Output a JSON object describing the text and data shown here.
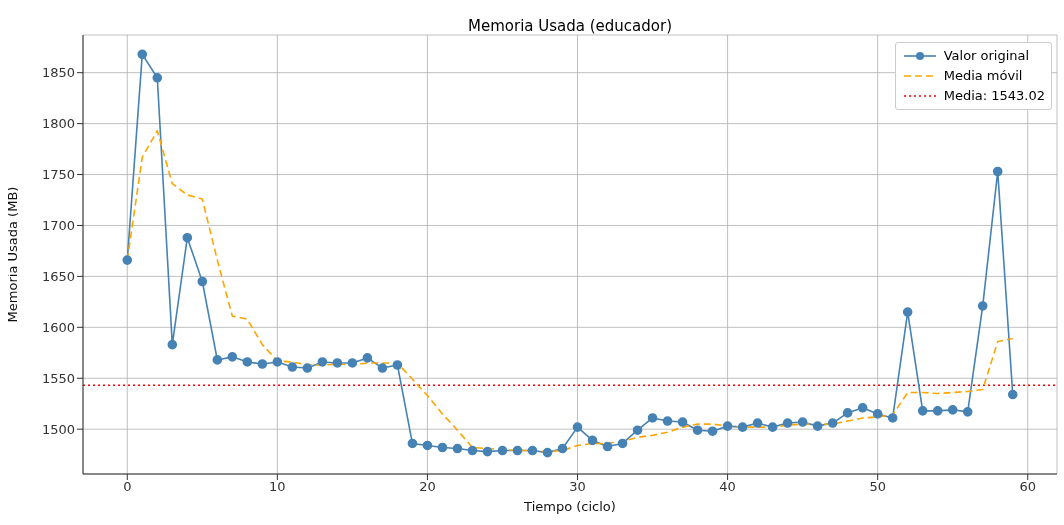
{
  "chart_data": {
    "type": "line",
    "title": "Memoria Usada (educador)",
    "xlabel": "Tiempo (ciclo)",
    "ylabel": "Memoria Usada (MB)",
    "x": [
      0,
      1,
      2,
      3,
      4,
      5,
      6,
      7,
      8,
      9,
      10,
      11,
      12,
      13,
      14,
      15,
      16,
      17,
      18,
      19,
      20,
      21,
      22,
      23,
      24,
      25,
      26,
      27,
      28,
      29,
      30,
      31,
      32,
      33,
      34,
      35,
      36,
      37,
      38,
      39,
      40,
      41,
      42,
      43,
      44,
      45,
      46,
      47,
      48,
      49,
      50,
      51,
      52,
      53,
      54,
      55,
      56,
      57,
      58,
      59
    ],
    "series": [
      {
        "name": "Valor original",
        "color": "#4682b4",
        "marker": "circle",
        "line_style": "solid",
        "values": [
          1666,
          1868,
          1845,
          1583,
          1688,
          1645,
          1568,
          1571,
          1566,
          1564,
          1566,
          1561,
          1560,
          1566,
          1565,
          1565,
          1570,
          1560,
          1563,
          1486,
          1484,
          1482,
          1481,
          1479,
          1478,
          1479,
          1479,
          1479,
          1477,
          1481,
          1502,
          1489,
          1483,
          1486,
          1499,
          1511,
          1508,
          1507,
          1499,
          1498,
          1503,
          1502,
          1506,
          1502,
          1506,
          1507,
          1503,
          1506,
          1516,
          1521,
          1515,
          1511,
          1615,
          1518,
          1518,
          1519,
          1517,
          1621,
          1753,
          1534
        ]
      },
      {
        "name": "Media móvil",
        "color": "#ffa500",
        "marker": "none",
        "line_style": "dashed",
        "values": [
          1666,
          1767,
          1793,
          1741,
          1730,
          1726,
          1666,
          1611,
          1608,
          1583,
          1567,
          1566,
          1563,
          1563,
          1564,
          1563,
          1565,
          1565,
          1565,
          1549,
          1533,
          1515,
          1499,
          1482,
          1481,
          1480,
          1479,
          1479,
          1478,
          1479,
          1484,
          1486,
          1486,
          1488,
          1492,
          1494,
          1497,
          1502,
          1505,
          1505,
          1503,
          1502,
          1502,
          1502,
          1504,
          1505,
          1505,
          1505,
          1508,
          1511,
          1512,
          1514,
          1536,
          1536,
          1535,
          1536,
          1537,
          1539,
          1586,
          1589
        ]
      }
    ],
    "ref_lines": [
      {
        "axis": "y",
        "value": 1543.02,
        "label": "Media: 1543.02",
        "color": "#ff0000",
        "line_style": "dotted"
      }
    ],
    "xlim": [
      -2.95,
      61.95
    ],
    "xticks": [
      0,
      10,
      20,
      30,
      40,
      50,
      60
    ],
    "ylim": [
      1456,
      1887
    ],
    "yticks": [
      1500,
      1550,
      1600,
      1650,
      1700,
      1750,
      1800,
      1850
    ],
    "grid": true,
    "legend": "top right"
  }
}
